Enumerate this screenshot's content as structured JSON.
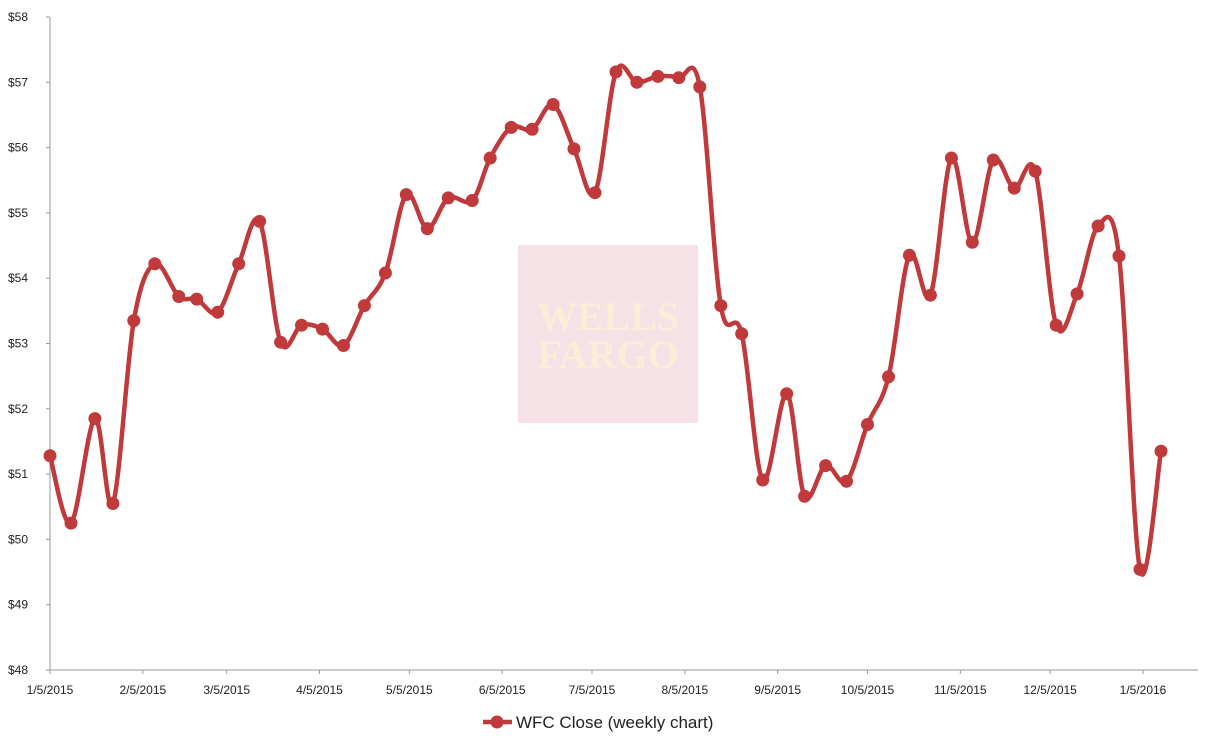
{
  "chart_data": {
    "type": "line",
    "title": "",
    "xlabel": "",
    "ylabel": "",
    "ylim": [
      48,
      58
    ],
    "y_ticks": [
      "$48",
      "$49",
      "$50",
      "$51",
      "$52",
      "$53",
      "$54",
      "$55",
      "$56",
      "$57",
      "$58"
    ],
    "x_ticks": [
      "1/5/2015",
      "2/5/2015",
      "3/5/2015",
      "4/5/2015",
      "5/5/2015",
      "6/5/2015",
      "7/5/2015",
      "8/5/2015",
      "9/5/2015",
      "10/5/2015",
      "11/5/2015",
      "12/5/2015",
      "1/5/2016"
    ],
    "grid": false,
    "legend_position": "bottom",
    "color": "#c0393b",
    "watermark": {
      "line1": "WELLS",
      "line2": "FARGO",
      "background": "#f6e1e6"
    },
    "series": [
      {
        "name": "WFC Close (weekly chart)",
        "x": [
          "2015-01-05",
          "2015-01-12",
          "2015-01-20",
          "2015-01-26",
          "2015-02-02",
          "2015-02-09",
          "2015-02-17",
          "2015-02-23",
          "2015-03-02",
          "2015-03-09",
          "2015-03-16",
          "2015-03-23",
          "2015-03-30",
          "2015-04-06",
          "2015-04-13",
          "2015-04-20",
          "2015-04-27",
          "2015-05-04",
          "2015-05-11",
          "2015-05-18",
          "2015-05-26",
          "2015-06-01",
          "2015-06-08",
          "2015-06-15",
          "2015-06-22",
          "2015-06-29",
          "2015-07-06",
          "2015-07-13",
          "2015-07-20",
          "2015-07-27",
          "2015-08-03",
          "2015-08-10",
          "2015-08-17",
          "2015-08-24",
          "2015-08-31",
          "2015-09-08",
          "2015-09-14",
          "2015-09-21",
          "2015-09-28",
          "2015-10-05",
          "2015-10-12",
          "2015-10-19",
          "2015-10-26",
          "2015-11-02",
          "2015-11-09",
          "2015-11-16",
          "2015-11-23",
          "2015-11-30",
          "2015-12-07",
          "2015-12-14",
          "2015-12-21",
          "2015-12-28",
          "2016-01-04",
          "2016-01-11"
        ],
        "values": [
          51.28,
          50.25,
          51.85,
          50.55,
          53.35,
          54.22,
          53.72,
          53.68,
          53.48,
          54.22,
          54.87,
          53.02,
          53.28,
          53.22,
          52.97,
          53.58,
          54.08,
          55.28,
          54.76,
          55.23,
          55.19,
          55.84,
          56.31,
          56.28,
          56.66,
          55.98,
          55.31,
          57.16,
          57.0,
          57.09,
          57.07,
          56.93,
          53.58,
          53.15,
          50.91,
          52.23,
          50.66,
          51.13,
          50.89,
          51.76,
          52.49,
          54.35,
          53.74,
          55.84,
          54.55,
          55.81,
          55.38,
          55.64,
          53.28,
          53.76,
          54.8,
          54.34,
          49.54,
          51.35
        ]
      }
    ]
  }
}
